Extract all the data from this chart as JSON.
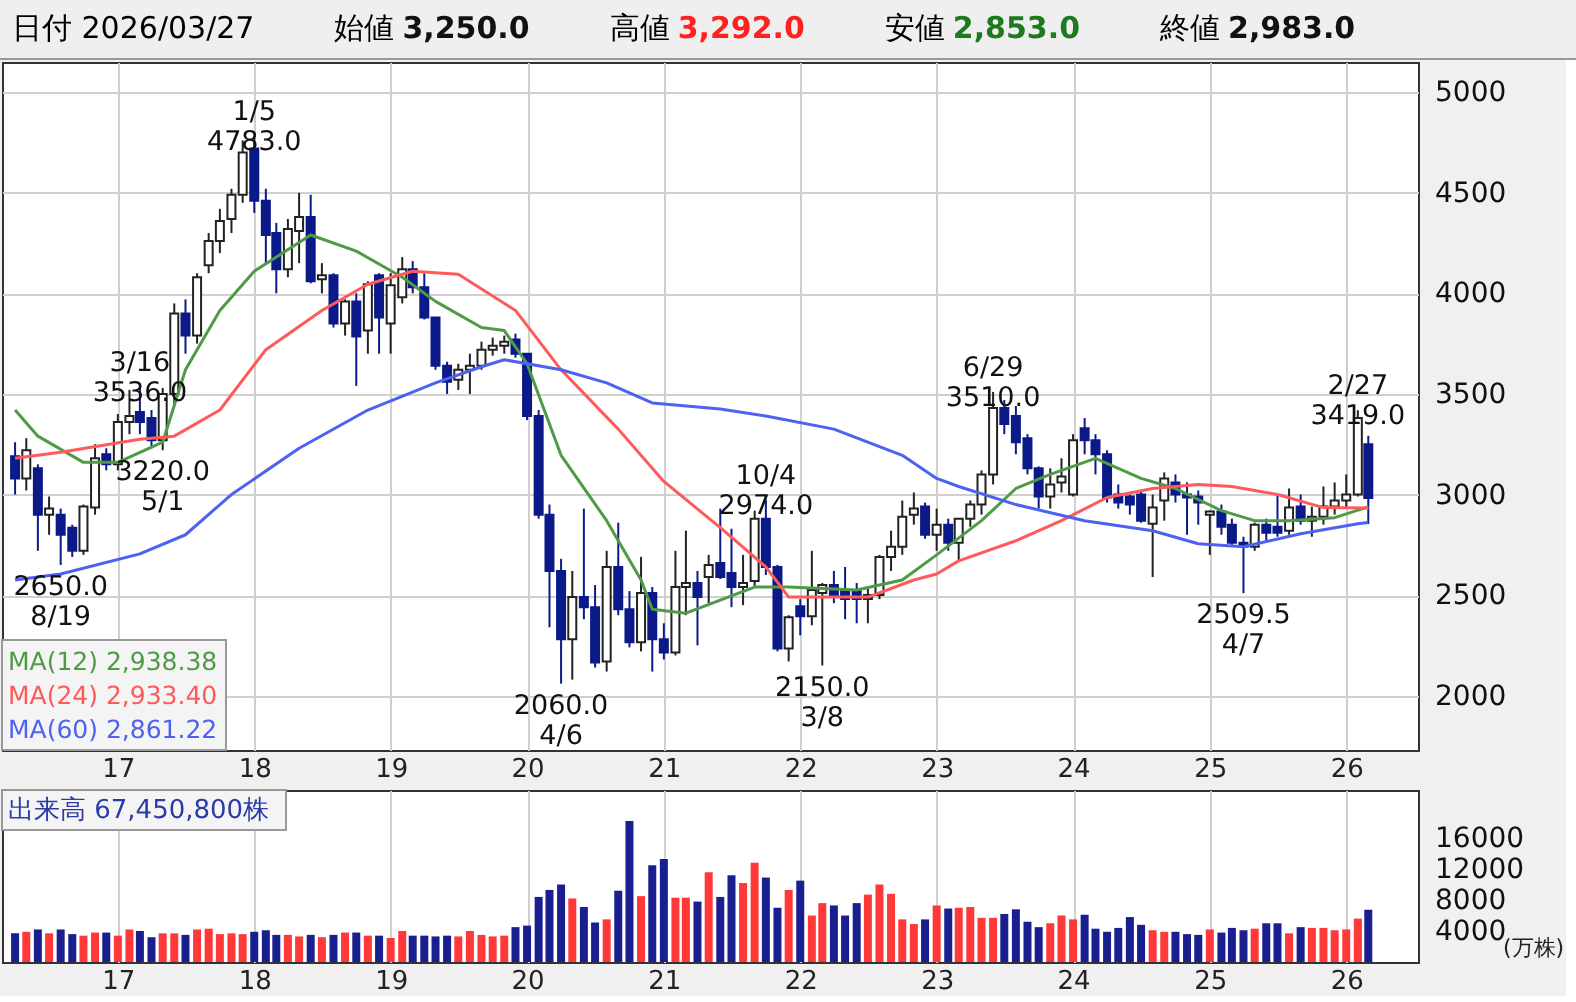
{
  "chart_data": [
    {
      "type": "candlestick",
      "title": "日付 2026/03/27",
      "annotations": [
        "始値 3,250.0",
        "高値 3,292.0",
        "安値 2,853.0",
        "終値 2,983.0",
        {
          "text": "1/5 4783.0",
          "x": "2018-01",
          "y": 4783
        },
        {
          "text": "3/16 3536.0",
          "x": "2017-03",
          "y": 3536
        },
        {
          "text": "3220.0 5/1",
          "x": "2017-05",
          "y": 3220
        },
        {
          "text": "2650.0 8/19",
          "x": "2016-08",
          "y": 2650
        },
        {
          "text": "2060.0 4/6",
          "x": "2020-04",
          "y": 2060
        },
        {
          "text": "10/4 2974.0",
          "x": "2021-10",
          "y": 2974
        },
        {
          "text": "2150.0 3/8",
          "x": "2022-03",
          "y": 2150
        },
        {
          "text": "6/29 3510.0",
          "x": "2023-06",
          "y": 3510
        },
        {
          "text": "2509.5 4/7",
          "x": "2025-04",
          "y": 2509.5
        },
        {
          "text": "2/27 3419.0",
          "x": "2026-02",
          "y": 3419
        }
      ],
      "x": [
        "2016-04",
        "2016-05",
        "2016-06",
        "2016-07",
        "2016-08",
        "2016-09",
        "2016-10",
        "2016-11",
        "2016-12",
        "2017-01",
        "2017-02",
        "2017-03",
        "2017-04",
        "2017-05",
        "2017-06",
        "2017-07",
        "2017-08",
        "2017-09",
        "2017-10",
        "2017-11",
        "2017-12",
        "2018-01",
        "2018-02",
        "2018-03",
        "2018-04",
        "2018-05",
        "2018-06",
        "2018-07",
        "2018-08",
        "2018-09",
        "2018-10",
        "2018-11",
        "2018-12",
        "2019-01",
        "2019-02",
        "2019-03",
        "2019-04",
        "2019-05",
        "2019-06",
        "2019-07",
        "2019-08",
        "2019-09",
        "2019-10",
        "2019-11",
        "2019-12",
        "2020-01",
        "2020-02",
        "2020-03",
        "2020-04",
        "2020-05",
        "2020-06",
        "2020-07",
        "2020-08",
        "2020-09",
        "2020-10",
        "2020-11",
        "2020-12",
        "2021-01",
        "2021-02",
        "2021-03",
        "2021-04",
        "2021-05",
        "2021-06",
        "2021-07",
        "2021-08",
        "2021-09",
        "2021-10",
        "2021-11",
        "2021-12",
        "2022-01",
        "2022-02",
        "2022-03",
        "2022-04",
        "2022-05",
        "2022-06",
        "2022-07",
        "2022-08",
        "2022-09",
        "2022-10",
        "2022-11",
        "2022-12",
        "2023-01",
        "2023-02",
        "2023-03",
        "2023-04",
        "2023-05",
        "2023-06",
        "2023-07",
        "2023-08",
        "2023-09",
        "2023-10",
        "2023-11",
        "2023-12",
        "2024-01",
        "2024-02",
        "2024-03",
        "2024-04",
        "2024-05",
        "2024-06",
        "2024-07",
        "2024-08",
        "2024-09",
        "2024-10",
        "2024-11",
        "2024-12",
        "2025-01",
        "2025-02",
        "2025-03",
        "2025-04",
        "2025-05",
        "2025-06",
        "2025-07",
        "2025-08",
        "2025-09",
        "2025-10",
        "2025-11",
        "2025-12",
        "2026-01",
        "2026-02",
        "2026-03"
      ],
      "ohlc": [
        [
          3190,
          3260,
          3000,
          3080
        ],
        [
          3080,
          3280,
          3020,
          3220
        ],
        [
          3130,
          3150,
          2720,
          2900
        ],
        [
          2900,
          2990,
          2800,
          2930
        ],
        [
          2900,
          2930,
          2650,
          2800
        ],
        [
          2835,
          2850,
          2690,
          2720
        ],
        [
          2720,
          2950,
          2700,
          2940
        ],
        [
          2935,
          3250,
          2900,
          3180
        ],
        [
          3200,
          3230,
          3120,
          3150
        ],
        [
          3150,
          3400,
          3120,
          3360
        ],
        [
          3360,
          3520,
          3300,
          3390
        ],
        [
          3410,
          3536,
          3300,
          3360
        ],
        [
          3380,
          3420,
          3230,
          3270
        ],
        [
          3270,
          3530,
          3220,
          3500
        ],
        [
          3500,
          3950,
          3450,
          3900
        ],
        [
          3900,
          3970,
          3700,
          3790
        ],
        [
          3790,
          4100,
          3750,
          4080
        ],
        [
          4140,
          4300,
          4100,
          4260
        ],
        [
          4260,
          4420,
          4200,
          4360
        ],
        [
          4370,
          4520,
          4300,
          4490
        ],
        [
          4490,
          4760,
          4450,
          4700
        ],
        [
          4720,
          4783,
          4400,
          4460
        ],
        [
          4460,
          4520,
          4150,
          4290
        ],
        [
          4300,
          4350,
          4000,
          4120
        ],
        [
          4120,
          4370,
          4080,
          4320
        ],
        [
          4310,
          4500,
          4150,
          4380
        ],
        [
          4380,
          4490,
          4050,
          4060
        ],
        [
          4070,
          4150,
          4000,
          4090
        ],
        [
          4090,
          4100,
          3830,
          3850
        ],
        [
          3850,
          3970,
          3790,
          3960
        ],
        [
          3960,
          4000,
          3540,
          3785
        ],
        [
          3815,
          4060,
          3700,
          4045
        ],
        [
          4090,
          4100,
          3700,
          3880
        ],
        [
          3850,
          4100,
          3700,
          4040
        ],
        [
          3980,
          4180,
          3950,
          4120
        ],
        [
          4120,
          4160,
          4000,
          4030
        ],
        [
          4030,
          4100,
          3870,
          3880
        ],
        [
          3880,
          3880,
          3620,
          3640
        ],
        [
          3640,
          3660,
          3500,
          3560
        ],
        [
          3570,
          3650,
          3520,
          3620
        ],
        [
          3620,
          3700,
          3500,
          3640
        ],
        [
          3640,
          3760,
          3620,
          3720
        ],
        [
          3720,
          3780,
          3690,
          3740
        ],
        [
          3740,
          3790,
          3700,
          3760
        ],
        [
          3770,
          3800,
          3680,
          3700
        ],
        [
          3700,
          3700,
          3370,
          3390
        ],
        [
          3390,
          3420,
          2880,
          2900
        ],
        [
          2900,
          2950,
          2340,
          2620
        ],
        [
          2620,
          2680,
          2060,
          2280
        ],
        [
          2280,
          2620,
          2080,
          2490
        ],
        [
          2490,
          2930,
          2380,
          2440
        ],
        [
          2440,
          2550,
          2140,
          2165
        ],
        [
          2170,
          2720,
          2120,
          2640
        ],
        [
          2640,
          2860,
          2400,
          2430
        ],
        [
          2430,
          2520,
          2240,
          2265
        ],
        [
          2265,
          2690,
          2220,
          2510
        ],
        [
          2510,
          2540,
          2120,
          2280
        ],
        [
          2280,
          2360,
          2180,
          2215
        ],
        [
          2215,
          2720,
          2200,
          2540
        ],
        [
          2540,
          2820,
          2400,
          2560
        ],
        [
          2560,
          2620,
          2250,
          2490
        ],
        [
          2590,
          2700,
          2460,
          2650
        ],
        [
          2660,
          2930,
          2580,
          2590
        ],
        [
          2610,
          2830,
          2440,
          2540
        ],
        [
          2540,
          2700,
          2450,
          2560
        ],
        [
          2570,
          2920,
          2540,
          2880
        ],
        [
          2880,
          2974,
          2600,
          2640
        ],
        [
          2640,
          2650,
          2220,
          2235
        ],
        [
          2235,
          2400,
          2170,
          2390
        ],
        [
          2445,
          2480,
          2300,
          2395
        ],
        [
          2395,
          2720,
          2350,
          2525
        ],
        [
          2510,
          2560,
          2150,
          2550
        ],
        [
          2550,
          2620,
          2460,
          2490
        ],
        [
          2520,
          2640,
          2380,
          2480
        ],
        [
          2520,
          2560,
          2360,
          2480
        ],
        [
          2480,
          2540,
          2360,
          2500
        ],
        [
          2500,
          2700,
          2480,
          2690
        ],
        [
          2690,
          2820,
          2620,
          2740
        ],
        [
          2740,
          2970,
          2700,
          2890
        ],
        [
          2900,
          3010,
          2850,
          2930
        ],
        [
          2940,
          2960,
          2780,
          2800
        ],
        [
          2800,
          2930,
          2720,
          2850
        ],
        [
          2850,
          2880,
          2720,
          2760
        ],
        [
          2760,
          2880,
          2670,
          2880
        ],
        [
          2880,
          2970,
          2840,
          2950
        ],
        [
          2950,
          3120,
          2900,
          3100
        ],
        [
          3100,
          3510,
          3050,
          3430
        ],
        [
          3430,
          3470,
          3300,
          3350
        ],
        [
          3390,
          3440,
          3200,
          3260
        ],
        [
          3280,
          3300,
          3100,
          3130
        ],
        [
          3130,
          3140,
          2930,
          2990
        ],
        [
          2990,
          3130,
          2930,
          3050
        ],
        [
          3060,
          3180,
          3010,
          3090
        ],
        [
          3000,
          3300,
          2990,
          3270
        ],
        [
          3330,
          3380,
          3200,
          3270
        ],
        [
          3270,
          3300,
          3100,
          3200
        ],
        [
          3200,
          3220,
          2960,
          2985
        ],
        [
          3000,
          3050,
          2930,
          2960
        ],
        [
          2990,
          3000,
          2900,
          2950
        ],
        [
          3000,
          3020,
          2860,
          2870
        ],
        [
          2855,
          3000,
          2590,
          2935
        ],
        [
          2970,
          3110,
          2870,
          3080
        ],
        [
          3060,
          3100,
          2960,
          3000
        ],
        [
          3000,
          3060,
          2800,
          2985
        ],
        [
          2990,
          3020,
          2850,
          2960
        ],
        [
          2900,
          2920,
          2700,
          2915
        ],
        [
          2915,
          2950,
          2800,
          2840
        ],
        [
          2850,
          2880,
          2750,
          2760
        ],
        [
          2760,
          2790,
          2509.5,
          2740
        ],
        [
          2740,
          2860,
          2720,
          2850
        ],
        [
          2850,
          2880,
          2760,
          2810
        ],
        [
          2840,
          3000,
          2790,
          2810
        ],
        [
          2820,
          3030,
          2800,
          2935
        ],
        [
          2940,
          3000,
          2850,
          2870
        ],
        [
          2870,
          2940,
          2790,
          2890
        ],
        [
          2890,
          3040,
          2850,
          2940
        ],
        [
          2940,
          3060,
          2900,
          2970
        ],
        [
          2970,
          3100,
          2930,
          3000
        ],
        [
          3000,
          3419,
          2990,
          3380
        ],
        [
          3250,
          3292,
          2853,
          2983
        ]
      ],
      "series": [
        {
          "name": "MA(12) 2,938.38",
          "color": "#4f9a47",
          "type": "line",
          "x": [
            "2016-04",
            "2016-06",
            "2016-10",
            "2017-01",
            "2017-05",
            "2017-07",
            "2017-10",
            "2018-01",
            "2018-06",
            "2018-10",
            "2019-02",
            "2019-05",
            "2019-09",
            "2019-11",
            "2020-01",
            "2020-04",
            "2020-08",
            "2020-11",
            "2020-12",
            "2021-03",
            "2021-06",
            "2021-09",
            "2021-12",
            "2022-06",
            "2022-10",
            "2023-01",
            "2023-05",
            "2023-08",
            "2023-11",
            "2024-03",
            "2024-07",
            "2024-10",
            "2025-02",
            "2025-05",
            "2025-08",
            "2025-12",
            "2026-03"
          ],
          "values": [
            3420,
            3290,
            3160,
            3160,
            3260,
            3620,
            3915,
            4110,
            4290,
            4210,
            4080,
            3960,
            3830,
            3815,
            3650,
            3195,
            2870,
            2575,
            2430,
            2410,
            2475,
            2540,
            2540,
            2525,
            2575,
            2700,
            2870,
            3030,
            3100,
            3180,
            3080,
            3030,
            2920,
            2870,
            2870,
            2885,
            2938.38
          ]
        },
        {
          "name": "MA(24) 2,933.40",
          "color": "#ff5a5a",
          "type": "line",
          "x": [
            "2016-04",
            "2016-08",
            "2017-03",
            "2017-06",
            "2017-10",
            "2018-02",
            "2018-07",
            "2018-11",
            "2019-03",
            "2019-07",
            "2019-12",
            "2020-04",
            "2020-09",
            "2021-01",
            "2021-06",
            "2021-10",
            "2021-12",
            "2022-04",
            "2022-07",
            "2022-11",
            "2023-01",
            "2023-03",
            "2023-08",
            "2023-12",
            "2024-04",
            "2024-08",
            "2024-12",
            "2025-03",
            "2025-07",
            "2025-11",
            "2026-03"
          ],
          "values": [
            3180,
            3210,
            3275,
            3290,
            3420,
            3720,
            3915,
            4045,
            4110,
            4095,
            3915,
            3620,
            3325,
            3065,
            2835,
            2640,
            2490,
            2490,
            2490,
            2575,
            2605,
            2670,
            2770,
            2870,
            2985,
            3030,
            3050,
            3040,
            3000,
            2935,
            2933.4
          ]
        },
        {
          "name": "MA(60) 2,861.22",
          "color": "#4d62f0",
          "type": "line",
          "x": [
            "2016-04",
            "2016-08",
            "2017-03",
            "2017-07",
            "2017-11",
            "2018-05",
            "2018-11",
            "2019-05",
            "2019-09",
            "2019-11",
            "2020-04",
            "2020-08",
            "2020-12",
            "2021-06",
            "2021-10",
            "2022-04",
            "2022-10",
            "2023-01",
            "2023-03",
            "2023-08",
            "2024-02",
            "2024-08",
            "2024-12",
            "2025-04",
            "2025-09",
            "2026-02",
            "2026-03"
          ],
          "values": [
            2575,
            2605,
            2705,
            2800,
            3000,
            3230,
            3420,
            3555,
            3635,
            3670,
            3620,
            3555,
            3455,
            3425,
            3390,
            3325,
            3195,
            3080,
            3040,
            2950,
            2870,
            2820,
            2755,
            2740,
            2805,
            2855,
            2861.22
          ]
        }
      ],
      "xlim": [
        "2016-02-26",
        "2026-07-12"
      ],
      "xticks": [
        {
          "value": "2017-01",
          "label": "17"
        },
        {
          "value": "2018-01",
          "label": "18"
        },
        {
          "value": "2019-01",
          "label": "19"
        },
        {
          "value": "2020-01",
          "label": "20"
        },
        {
          "value": "2021-01",
          "label": "21"
        },
        {
          "value": "2022-01",
          "label": "22"
        },
        {
          "value": "2023-01",
          "label": "23"
        },
        {
          "value": "2024-01",
          "label": "24"
        },
        {
          "value": "2025-01",
          "label": "25"
        },
        {
          "value": "2026-01",
          "label": "26"
        }
      ],
      "ylim": [
        1730,
        5150
      ],
      "yticks": [
        2000,
        2500,
        3000,
        3500,
        4000,
        4500,
        5000
      ],
      "grid": true,
      "legend": "bottom left"
    },
    {
      "type": "bar",
      "title": "出来高 67,450,800株",
      "ylabel": "(万株)",
      "x": [
        "2016-04",
        "2016-05",
        "2016-06",
        "2016-07",
        "2016-08",
        "2016-09",
        "2016-10",
        "2016-11",
        "2016-12",
        "2017-01",
        "2017-02",
        "2017-03",
        "2017-04",
        "2017-05",
        "2017-06",
        "2017-07",
        "2017-08",
        "2017-09",
        "2017-10",
        "2017-11",
        "2017-12",
        "2018-01",
        "2018-02",
        "2018-03",
        "2018-04",
        "2018-05",
        "2018-06",
        "2018-07",
        "2018-08",
        "2018-09",
        "2018-10",
        "2018-11",
        "2018-12",
        "2019-01",
        "2019-02",
        "2019-03",
        "2019-04",
        "2019-05",
        "2019-06",
        "2019-07",
        "2019-08",
        "2019-09",
        "2019-10",
        "2019-11",
        "2019-12",
        "2020-01",
        "2020-02",
        "2020-03",
        "2020-04",
        "2020-05",
        "2020-06",
        "2020-07",
        "2020-08",
        "2020-09",
        "2020-10",
        "2020-11",
        "2020-12",
        "2021-01",
        "2021-02",
        "2021-03",
        "2021-04",
        "2021-05",
        "2021-06",
        "2021-07",
        "2021-08",
        "2021-09",
        "2021-10",
        "2021-11",
        "2021-12",
        "2022-01",
        "2022-02",
        "2022-03",
        "2022-04",
        "2022-05",
        "2022-06",
        "2022-07",
        "2022-08",
        "2022-09",
        "2022-10",
        "2022-11",
        "2022-12",
        "2023-01",
        "2023-02",
        "2023-03",
        "2023-04",
        "2023-05",
        "2023-06",
        "2023-07",
        "2023-08",
        "2023-09",
        "2023-10",
        "2023-11",
        "2023-12",
        "2024-01",
        "2024-02",
        "2024-03",
        "2024-04",
        "2024-05",
        "2024-06",
        "2024-07",
        "2024-08",
        "2024-09",
        "2024-10",
        "2024-11",
        "2024-12",
        "2025-01",
        "2025-02",
        "2025-03",
        "2025-04",
        "2025-05",
        "2025-06",
        "2025-07",
        "2025-08",
        "2025-09",
        "2025-10",
        "2025-11",
        "2025-12",
        "2026-01",
        "2026-02",
        "2026-03"
      ],
      "values": [
        3700,
        3900,
        4200,
        3700,
        4200,
        3600,
        3400,
        3800,
        3800,
        3400,
        4200,
        4000,
        3200,
        3700,
        3700,
        3500,
        4200,
        4300,
        3600,
        3700,
        3600,
        3900,
        4100,
        3500,
        3500,
        3300,
        3500,
        3200,
        3500,
        3800,
        3800,
        3400,
        3400,
        3100,
        4000,
        3400,
        3400,
        3300,
        3400,
        3300,
        4000,
        3500,
        3300,
        3400,
        4500,
        4700,
        8400,
        9300,
        10000,
        8200,
        7100,
        5100,
        5500,
        9200,
        18200,
        8500,
        12500,
        13300,
        8300,
        8300,
        7800,
        11600,
        8400,
        11200,
        10200,
        12800,
        10900,
        7000,
        9300,
        10500,
        6000,
        7600,
        7300,
        6000,
        7600,
        8700,
        10000,
        8800,
        5500,
        4900,
        5500,
        7300,
        6900,
        7000,
        7100,
        5700,
        5700,
        6200,
        6800,
        5200,
        4500,
        5000,
        6000,
        5500,
        6100,
        4300,
        3900,
        4400,
        5800,
        4800,
        4100,
        3900,
        3900,
        3600,
        3500,
        4200,
        3800,
        4400,
        4100,
        4300,
        5000,
        5000,
        3700,
        4500,
        4400,
        4400,
        4100,
        4200,
        5600,
        6745
      ],
      "colors": [
        "#1a1f8f",
        "#ff3838",
        "#1a1f8f",
        "#ff3838",
        "#1a1f8f",
        "#1a1f8f",
        "#ff3838",
        "#ff3838",
        "#1a1f8f",
        "#ff3838",
        "#ff3838",
        "#1a1f8f",
        "#1a1f8f",
        "#ff3838",
        "#ff3838",
        "#1a1f8f",
        "#ff3838",
        "#ff3838",
        "#ff3838",
        "#ff3838",
        "#ff3838",
        "#1a1f8f",
        "#1a1f8f",
        "#1a1f8f",
        "#ff3838",
        "#ff3838",
        "#1a1f8f",
        "#ff3838",
        "#1a1f8f",
        "#ff3838",
        "#1a1f8f",
        "#ff3838",
        "#1a1f8f",
        "#ff3838",
        "#ff3838",
        "#1a1f8f",
        "#1a1f8f",
        "#1a1f8f",
        "#1a1f8f",
        "#ff3838",
        "#ff3838",
        "#ff3838",
        "#ff3838",
        "#ff3838",
        "#1a1f8f",
        "#1a1f8f",
        "#1a1f8f",
        "#1a1f8f",
        "#1a1f8f",
        "#ff3838",
        "#1a1f8f",
        "#1a1f8f",
        "#ff3838",
        "#1a1f8f",
        "#1a1f8f",
        "#ff3838",
        "#1a1f8f",
        "#1a1f8f",
        "#ff3838",
        "#ff3838",
        "#1a1f8f",
        "#ff3838",
        "#1a1f8f",
        "#1a1f8f",
        "#ff3838",
        "#ff3838",
        "#1a1f8f",
        "#1a1f8f",
        "#ff3838",
        "#1a1f8f",
        "#ff3838",
        "#ff3838",
        "#1a1f8f",
        "#1a1f8f",
        "#1a1f8f",
        "#ff3838",
        "#ff3838",
        "#ff3838",
        "#ff3838",
        "#ff3838",
        "#1a1f8f",
        "#ff3838",
        "#1a1f8f",
        "#ff3838",
        "#ff3838",
        "#ff3838",
        "#ff3838",
        "#1a1f8f",
        "#1a1f8f",
        "#1a1f8f",
        "#1a1f8f",
        "#ff3838",
        "#ff3838",
        "#ff3838",
        "#1a1f8f",
        "#1a1f8f",
        "#1a1f8f",
        "#1a1f8f",
        "#1a1f8f",
        "#1a1f8f",
        "#ff3838",
        "#ff3838",
        "#1a1f8f",
        "#1a1f8f",
        "#1a1f8f",
        "#ff3838",
        "#1a1f8f",
        "#1a1f8f",
        "#1a1f8f",
        "#ff3838",
        "#1a1f8f",
        "#1a1f8f",
        "#ff3838",
        "#1a1f8f",
        "#ff3838",
        "#ff3838",
        "#ff3838",
        "#ff3838",
        "#ff3838",
        "#1a1f8f"
      ],
      "xlim": [
        "2016-02-26",
        "2026-07-12"
      ],
      "xticks": [
        {
          "value": "2017-01",
          "label": "17"
        },
        {
          "value": "2018-01",
          "label": "18"
        },
        {
          "value": "2019-01",
          "label": "19"
        },
        {
          "value": "2020-01",
          "label": "20"
        },
        {
          "value": "2021-01",
          "label": "21"
        },
        {
          "value": "2022-01",
          "label": "22"
        },
        {
          "value": "2023-01",
          "label": "23"
        },
        {
          "value": "2024-01",
          "label": "24"
        },
        {
          "value": "2025-01",
          "label": "25"
        },
        {
          "value": "2026-01",
          "label": "26"
        }
      ],
      "ylim": [
        0,
        22200
      ],
      "yticks": [
        4000,
        8000,
        12000,
        16000
      ],
      "grid": "x"
    }
  ]
}
